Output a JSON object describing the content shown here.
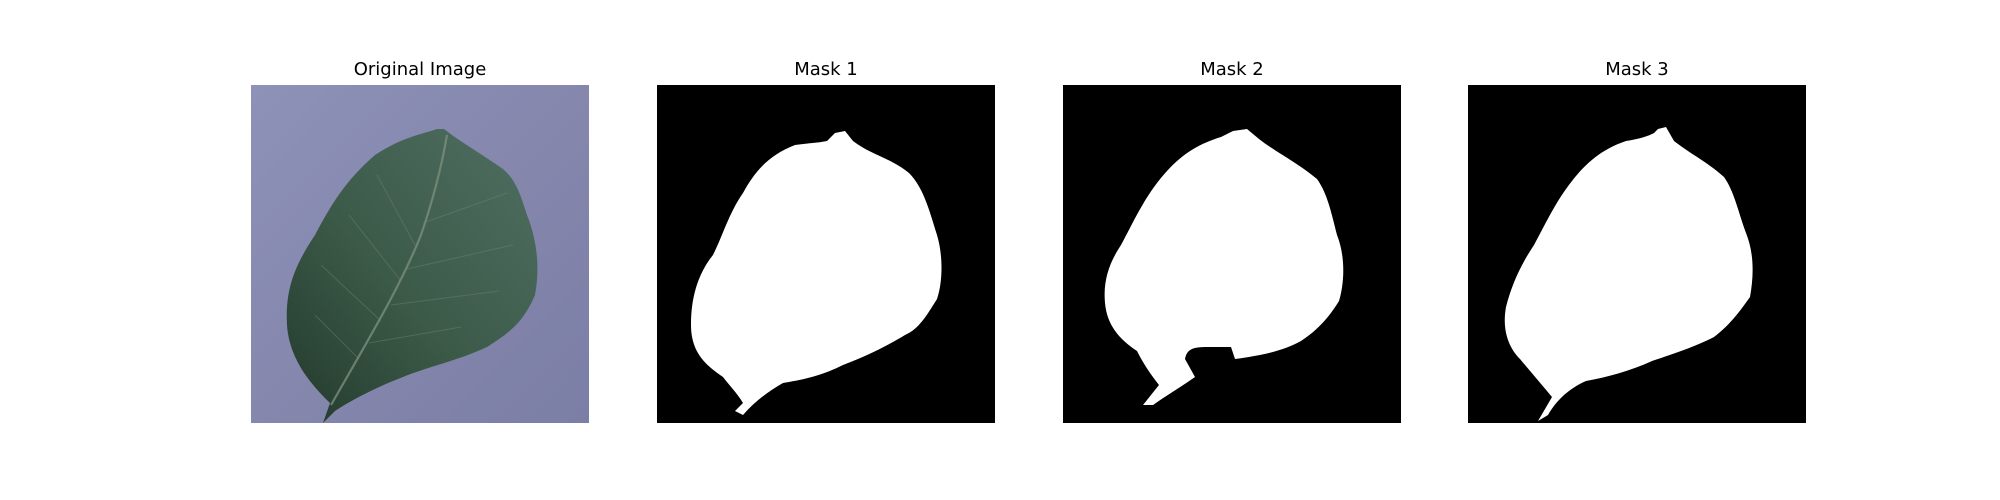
{
  "panels": [
    {
      "title": "Original Image",
      "kind": "photo"
    },
    {
      "title": "Mask 1",
      "kind": "mask"
    },
    {
      "title": "Mask 2",
      "kind": "mask"
    },
    {
      "title": "Mask 3",
      "kind": "mask"
    }
  ],
  "colors": {
    "background_surface": "#8c8fb5",
    "leaf_dark": "#2f4a3c",
    "leaf_mid": "#4b6b5c",
    "mask_background": "#000000",
    "mask_foreground": "#ffffff"
  }
}
